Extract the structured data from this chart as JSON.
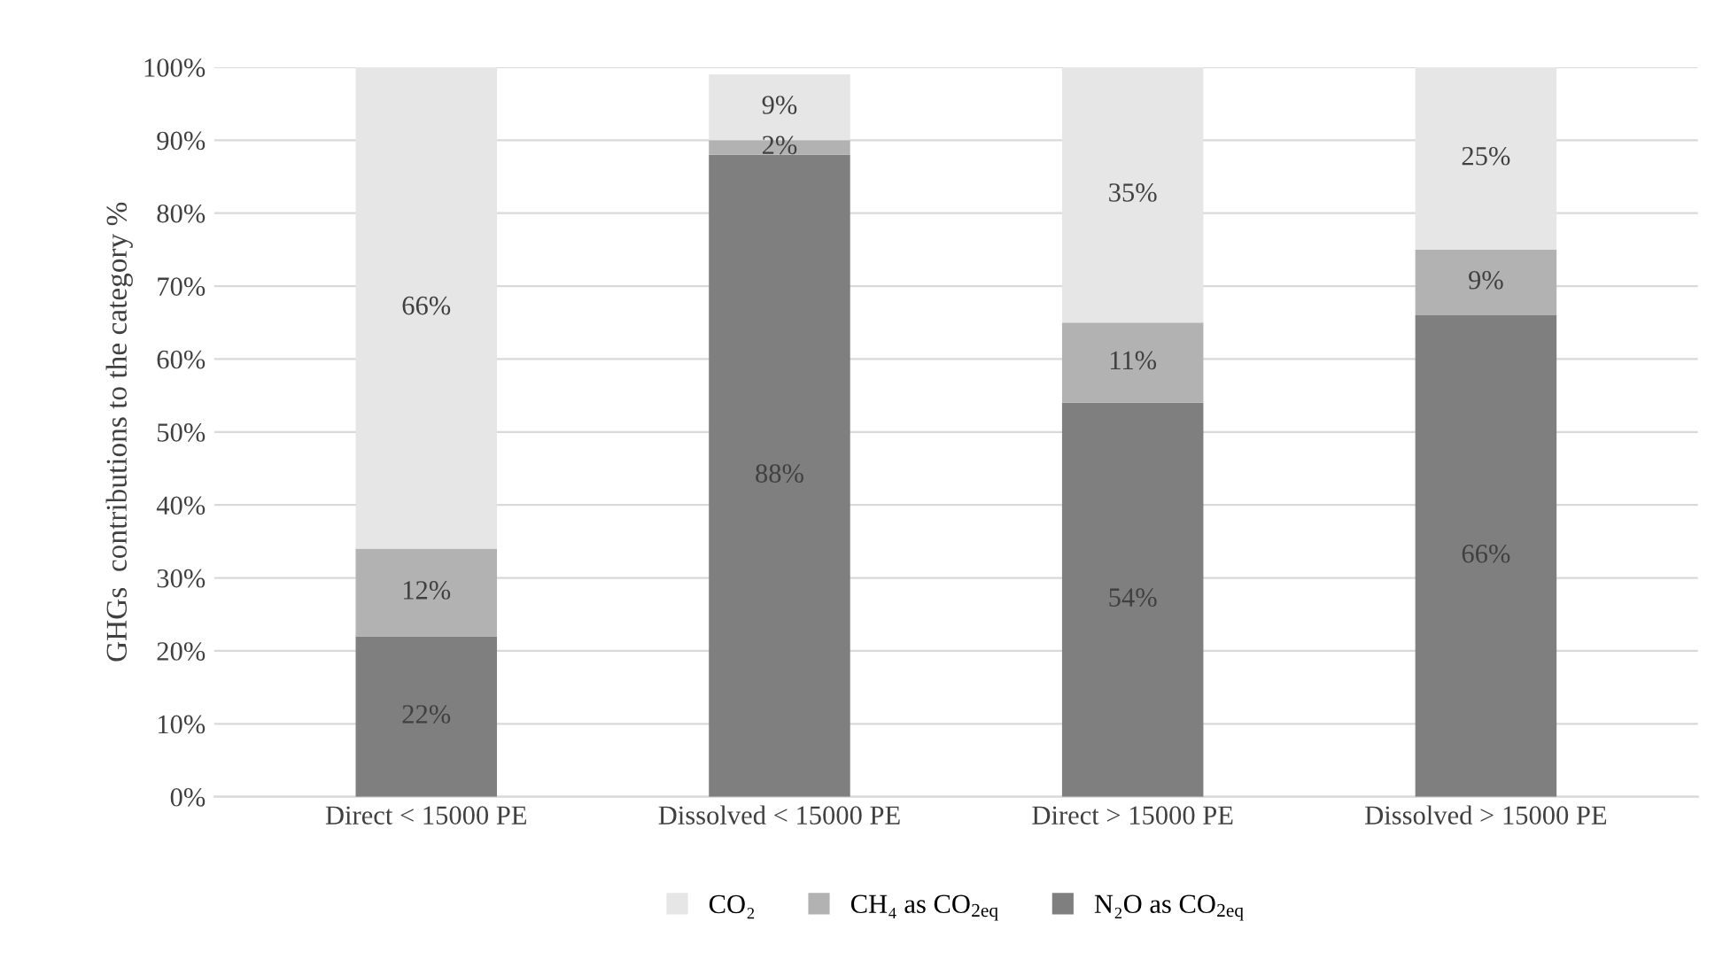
{
  "chart_data": {
    "type": "bar",
    "stacked": true,
    "ylabel": "GHGs  contributions to the category %",
    "categories": [
      "Direct < 15000 PE",
      "Dissolved < 15000 PE",
      "Direct > 15000 PE",
      "Dissolved > 15000 PE"
    ],
    "series": [
      {
        "name": "N₂O as CO$_{2eq}$",
        "color": "#7f7f7f",
        "values": [
          22,
          88,
          54,
          66
        ],
        "value_labels": [
          "22%",
          "88%",
          "54%",
          "66%"
        ]
      },
      {
        "name": "CH₄ as CO$_{2eq}$",
        "color": "#b2b2b2",
        "values": [
          12,
          2,
          11,
          9
        ],
        "value_labels": [
          "12%",
          "2%",
          "11%",
          "9%"
        ]
      },
      {
        "name": "CO₂",
        "color": "#e6e6e6",
        "values": [
          66,
          9,
          35,
          25
        ],
        "value_labels": [
          "66%",
          "9%",
          "35%",
          "25%"
        ]
      }
    ],
    "ylim": [
      0,
      100
    ],
    "yticks": [
      {
        "value": 0,
        "label": "0%"
      },
      {
        "value": 10,
        "label": "10%"
      },
      {
        "value": 20,
        "label": "20%"
      },
      {
        "value": 30,
        "label": "30%"
      },
      {
        "value": 40,
        "label": "40%"
      },
      {
        "value": 50,
        "label": "50%"
      },
      {
        "value": 60,
        "label": "60%"
      },
      {
        "value": 70,
        "label": "70%"
      },
      {
        "value": 80,
        "label": "80%"
      },
      {
        "value": 90,
        "label": "90%"
      },
      {
        "value": 100,
        "label": "100%"
      }
    ],
    "grid": "y",
    "legend": "bottom"
  }
}
